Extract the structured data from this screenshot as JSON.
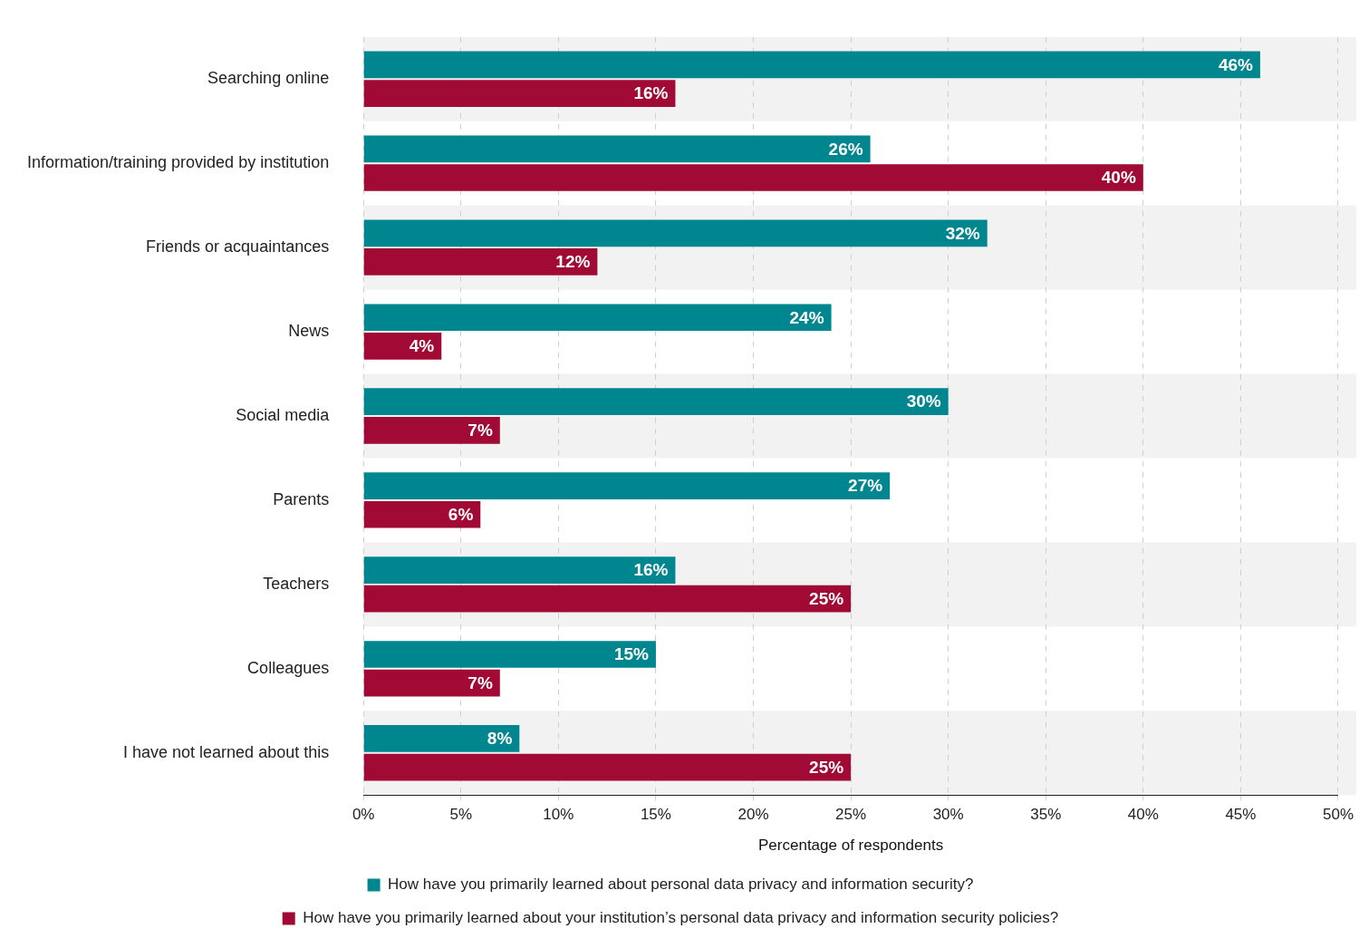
{
  "chart_data": {
    "type": "bar",
    "orientation": "horizontal",
    "categories": [
      "Searching online",
      "Information/training provided by institution",
      "Friends or acquaintances",
      "News",
      "Social media",
      "Parents",
      "Teachers",
      "Colleagues",
      "I have not learned about this"
    ],
    "series": [
      {
        "name": "How have you primarily learned about personal data privacy and information security?",
        "color": "#00868f",
        "values": [
          46,
          26,
          32,
          24,
          30,
          27,
          16,
          15,
          8
        ],
        "value_labels": [
          "46%",
          "26%",
          "32%",
          "24%",
          "30%",
          "27%",
          "16%",
          "15%",
          "8%"
        ]
      },
      {
        "name": "How have you primarily learned about your institution’s personal data privacy and information security policies?",
        "color": "#a00a35",
        "values": [
          16,
          40,
          12,
          4,
          7,
          6,
          25,
          7,
          25
        ],
        "value_labels": [
          "16%",
          "40%",
          "12%",
          "4%",
          "7%",
          "6%",
          "25%",
          "7%",
          "25%"
        ]
      }
    ],
    "xlabel": "Percentage of respondents",
    "xlim": [
      0,
      50
    ],
    "xticks": [
      {
        "value": 0,
        "label": "0%"
      },
      {
        "value": 5,
        "label": "5%"
      },
      {
        "value": 10,
        "label": "10%"
      },
      {
        "value": 15,
        "label": "15%"
      },
      {
        "value": 20,
        "label": "20%"
      },
      {
        "value": 25,
        "label": "25%"
      },
      {
        "value": 30,
        "label": "30%"
      },
      {
        "value": 35,
        "label": "35%"
      },
      {
        "value": 40,
        "label": "40%"
      },
      {
        "value": 45,
        "label": "45%"
      },
      {
        "value": 50,
        "label": "50%"
      }
    ],
    "grid": true,
    "legend": "bottom",
    "data_labels": true
  }
}
